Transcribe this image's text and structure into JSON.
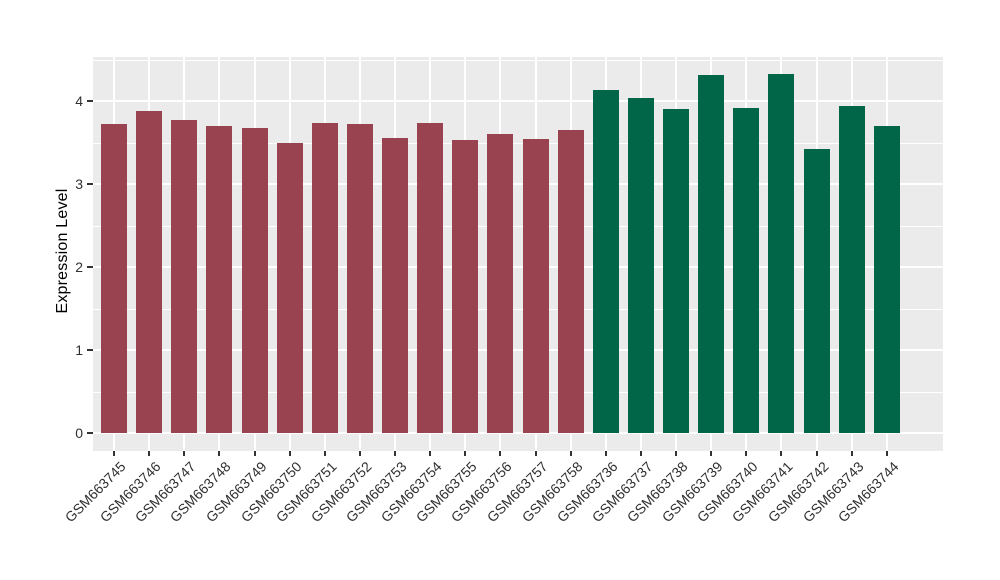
{
  "chart_data": {
    "type": "bar",
    "title": "",
    "xlabel": "",
    "ylabel": "Expression Level",
    "yticks": [
      0,
      1,
      2,
      3,
      4
    ],
    "yticks_minor": [
      0.5,
      1.5,
      2.5,
      3.5,
      4.5
    ],
    "ylim": [
      -0.22,
      4.53
    ],
    "grid": "white major and minor gridlines on grey panel",
    "legend": "none",
    "categories": [
      "GSM663745",
      "GSM663746",
      "GSM663747",
      "GSM663748",
      "GSM663749",
      "GSM663750",
      "GSM663751",
      "GSM663752",
      "GSM663753",
      "GSM663754",
      "GSM663755",
      "GSM663756",
      "GSM663757",
      "GSM663758",
      "GSM663736",
      "GSM663737",
      "GSM663738",
      "GSM663739",
      "GSM663740",
      "GSM663741",
      "GSM663742",
      "GSM663743",
      "GSM663744"
    ],
    "values": [
      3.72,
      3.88,
      3.77,
      3.7,
      3.67,
      3.49,
      3.73,
      3.72,
      3.55,
      3.73,
      3.53,
      3.6,
      3.54,
      3.65,
      4.13,
      4.04,
      3.9,
      4.31,
      3.92,
      4.32,
      3.42,
      3.94,
      3.7
    ],
    "bar_groups": [
      "maroon",
      "maroon",
      "maroon",
      "maroon",
      "maroon",
      "maroon",
      "maroon",
      "maroon",
      "maroon",
      "maroon",
      "maroon",
      "maroon",
      "maroon",
      "maroon",
      "green",
      "green",
      "green",
      "green",
      "green",
      "green",
      "green",
      "green",
      "green"
    ],
    "group_colors": {
      "maroon": "#9A4350",
      "green": "#006647"
    }
  },
  "colors": {
    "panel_bg": "#EBEBEB",
    "grid": "#FFFFFF",
    "tick_mark": "#333333",
    "tick_text": "#303030",
    "axis_title_text": "#000000",
    "page_bg": "#FFFFFF"
  }
}
